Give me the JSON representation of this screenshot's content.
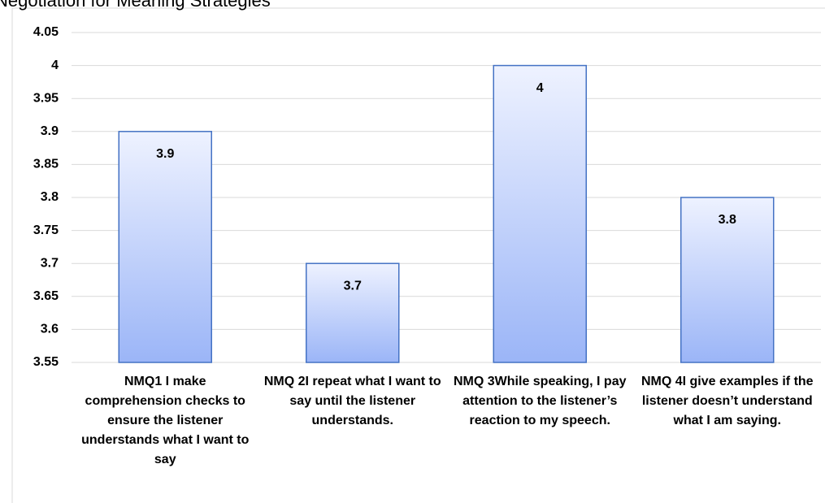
{
  "chart_data": {
    "type": "bar",
    "title": "Negotiation for Meaning Strategies",
    "categories": [
      "NMQ1 I make comprehension checks to ensure the listener understands what I want to say",
      "NMQ 2I repeat what I want to say until the listener understands.",
      "NMQ 3While speaking, I pay attention to the listener’s reaction to my speech.",
      "NMQ 4I give examples if the listener doesn’t understand what I am saying."
    ],
    "values": [
      3.9,
      3.7,
      4,
      3.8
    ],
    "color": "#4472c4",
    "ylim": [
      3.55,
      4.05
    ],
    "yticks": [
      3.55,
      3.6,
      3.65,
      3.7,
      3.75,
      3.8,
      3.85,
      3.9,
      3.95,
      4,
      4.05
    ],
    "grid": true
  }
}
